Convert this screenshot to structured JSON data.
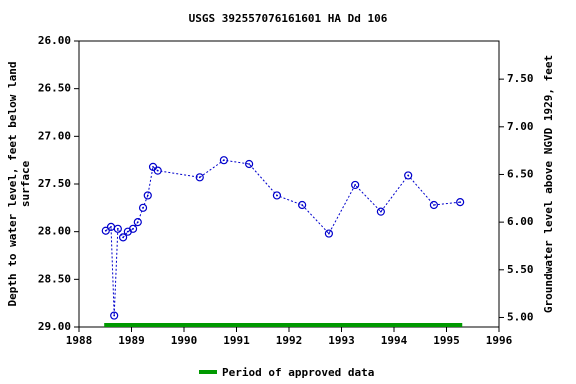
{
  "chart_data": {
    "type": "line",
    "title": "USGS 392557076161601 HA Dd 106",
    "ylabel": [
      "Depth to water level, feet below land",
      "surface"
    ],
    "y2label": "Groundwater level above NGVD 1929, feet",
    "x": [
      1988.51,
      1988.61,
      1988.67,
      1988.74,
      1988.84,
      1988.93,
      1989.03,
      1989.12,
      1989.22,
      1989.31,
      1989.41,
      1989.5,
      1990.3,
      1990.76,
      1991.24,
      1991.77,
      1992.25,
      1992.76,
      1993.26,
      1993.75,
      1994.27,
      1994.76,
      1995.26
    ],
    "series": [
      {
        "color": "#0000cc",
        "values": [
          27.99,
          27.95,
          28.88,
          27.97,
          28.06,
          28.0,
          27.97,
          27.9,
          27.75,
          27.62,
          27.32,
          27.36,
          27.43,
          27.25,
          27.29,
          27.62,
          27.72,
          28.02,
          27.51,
          27.79,
          27.41,
          27.72,
          27.69
        ]
      }
    ],
    "xlim": [
      1988,
      1996
    ],
    "xticks": [
      1988,
      1989,
      1990,
      1991,
      1992,
      1993,
      1994,
      1995,
      1996
    ],
    "ylim": [
      26,
      29
    ],
    "y_inverted": true,
    "yticks": [
      {
        "value": 26,
        "label": "26.00"
      },
      {
        "value": 26.5,
        "label": "26.50"
      },
      {
        "value": 27,
        "label": "27.00"
      },
      {
        "value": 27.5,
        "label": "27.50"
      },
      {
        "value": 28,
        "label": "28.00"
      },
      {
        "value": 28.5,
        "label": "28.50"
      },
      {
        "value": 29,
        "label": "29.00"
      }
    ],
    "y2lim": [
      4.9,
      7.9
    ],
    "y2ticks": [
      {
        "value": 5,
        "label": "5.00"
      },
      {
        "value": 5.5,
        "label": "5.50"
      },
      {
        "value": 6,
        "label": "6.00"
      },
      {
        "value": 6.5,
        "label": "6.50"
      },
      {
        "value": 7,
        "label": "7.00"
      },
      {
        "value": 7.5,
        "label": "7.50"
      }
    ],
    "approved_period": {
      "start": 1988.48,
      "end": 1995.3,
      "name": "Period of approved data",
      "color": "#009900"
    }
  }
}
